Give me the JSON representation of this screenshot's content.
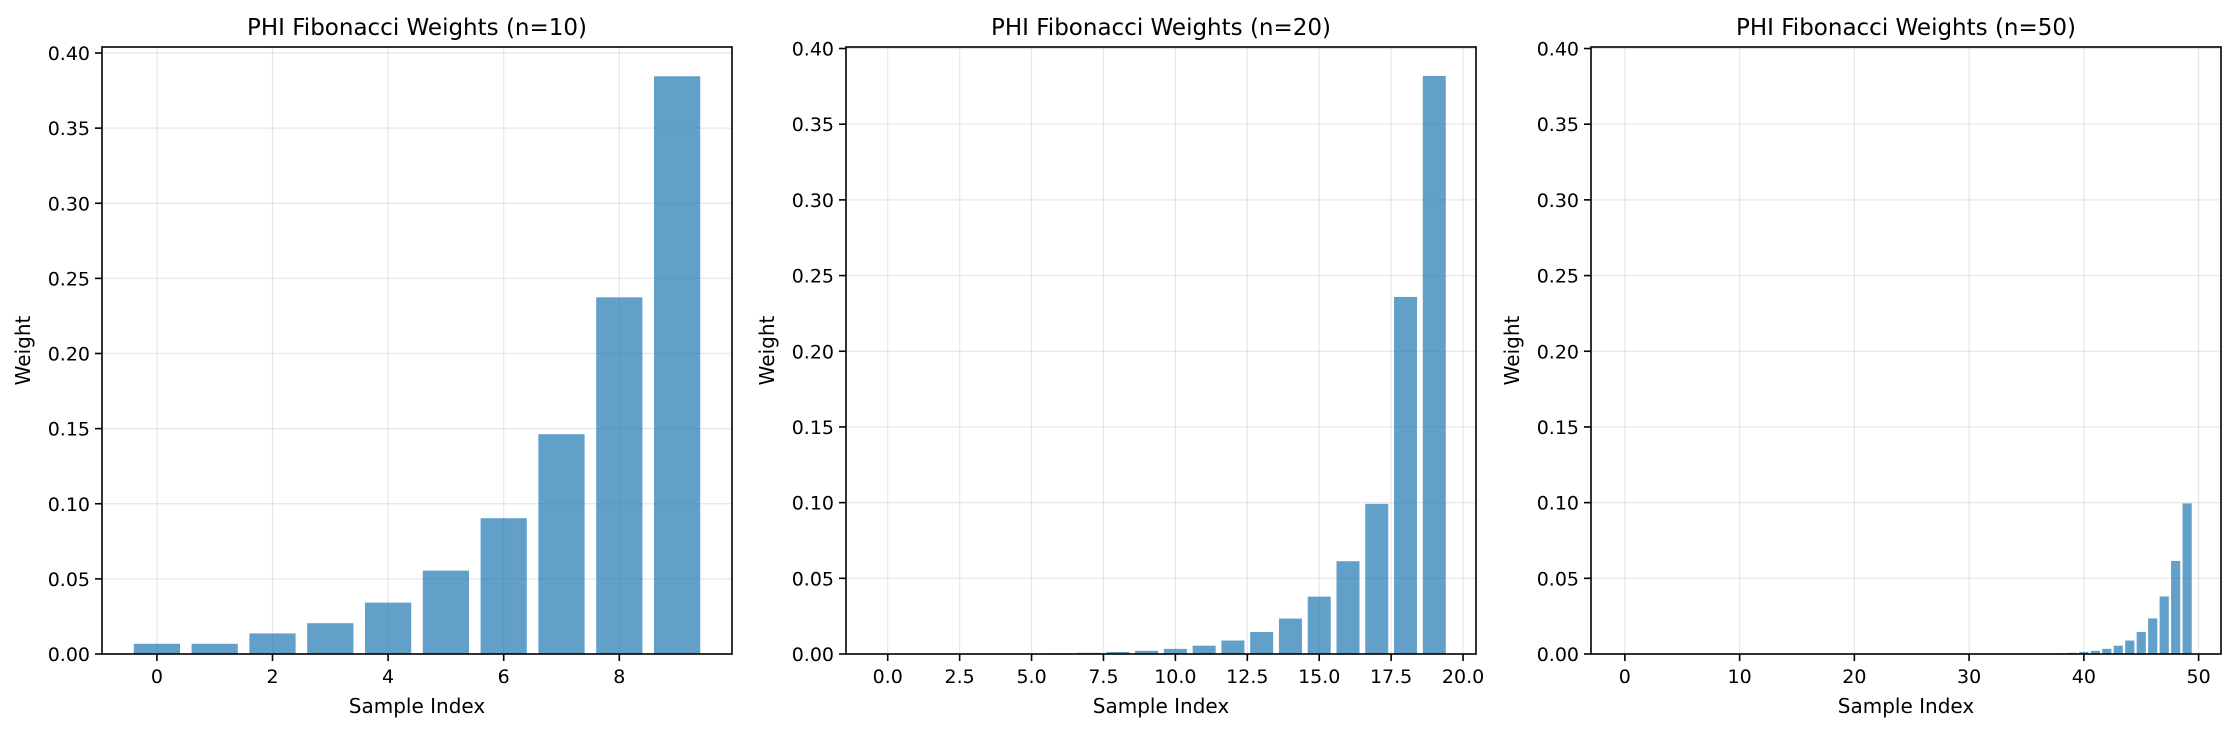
{
  "chart_data": [
    {
      "type": "bar",
      "title": "PHI Fibonacci Weights (n=10)",
      "xlabel": "Sample Index",
      "ylabel": "Weight",
      "x": [
        0,
        1,
        2,
        3,
        4,
        5,
        6,
        7,
        8,
        9
      ],
      "values": [
        0.0068,
        0.0068,
        0.0137,
        0.0205,
        0.0342,
        0.0555,
        0.0904,
        0.1463,
        0.2374,
        0.3845
      ],
      "xlim": [
        -0.95,
        9.95
      ],
      "ylim": [
        0,
        0.404
      ],
      "xticks": [
        0,
        2,
        4,
        6,
        8
      ],
      "xtick_labels": [
        "0",
        "2",
        "4",
        "6",
        "8"
      ],
      "yticks": [
        0,
        0.05,
        0.1,
        0.15,
        0.2,
        0.25,
        0.3,
        0.35,
        0.4
      ],
      "ytick_labels": [
        "0.00",
        "0.05",
        "0.10",
        "0.15",
        "0.20",
        "0.25",
        "0.30",
        "0.35",
        "0.40"
      ],
      "grid": true,
      "color": "#1f77b4"
    },
    {
      "type": "bar",
      "title": "PHI Fibonacci Weights (n=20)",
      "xlabel": "Sample Index",
      "ylabel": "Weight",
      "x": [
        0,
        1,
        2,
        3,
        4,
        5,
        6,
        7,
        8,
        9,
        10,
        11,
        12,
        13,
        14,
        15,
        16,
        17,
        18,
        19
      ],
      "values": [
        4e-05,
        4e-05,
        8e-05,
        0.00012,
        0.0002,
        0.0003,
        0.0005,
        0.0008,
        0.0013,
        0.0021,
        0.0034,
        0.0055,
        0.0089,
        0.0145,
        0.0234,
        0.0379,
        0.0613,
        0.0992,
        0.2359,
        0.3819
      ],
      "xlim": [
        -1.45,
        20.45
      ],
      "ylim": [
        0,
        0.401
      ],
      "xticks": [
        0,
        2.5,
        5,
        7.5,
        10,
        12.5,
        15,
        17.5,
        20
      ],
      "xtick_labels": [
        "0.0",
        "2.5",
        "5.0",
        "7.5",
        "10.0",
        "12.5",
        "15.0",
        "17.5",
        "20.0"
      ],
      "yticks": [
        0,
        0.05,
        0.1,
        0.15,
        0.2,
        0.25,
        0.3,
        0.35,
        0.4
      ],
      "ytick_labels": [
        "0.00",
        "0.05",
        "0.10",
        "0.15",
        "0.20",
        "0.25",
        "0.30",
        "0.35",
        "0.40"
      ],
      "grid": true,
      "color": "#1f77b4"
    },
    {
      "type": "bar",
      "title": "PHI Fibonacci Weights (n=50)",
      "xlabel": "Sample Index",
      "ylabel": "Weight",
      "x": [
        0,
        1,
        2,
        3,
        4,
        5,
        6,
        7,
        8,
        9,
        10,
        11,
        12,
        13,
        14,
        15,
        16,
        17,
        18,
        19,
        20,
        21,
        22,
        23,
        24,
        25,
        26,
        27,
        28,
        29,
        30,
        31,
        32,
        33,
        34,
        35,
        36,
        37,
        38,
        39,
        40,
        41,
        42,
        43,
        44,
        45,
        46,
        47,
        48,
        49
      ],
      "values": [
        0,
        0,
        0,
        0,
        0,
        0,
        0,
        0,
        0,
        0,
        0,
        0,
        0,
        0,
        0,
        0,
        0,
        0,
        0,
        0,
        0,
        0,
        0,
        0,
        0,
        0,
        0,
        0,
        0,
        0,
        0,
        0,
        0,
        4e-05,
        6e-05,
        0.0001,
        0.0002,
        0.0003,
        0.0005,
        0.0008,
        0.0013,
        0.0021,
        0.0034,
        0.0055,
        0.0089,
        0.0145,
        0.0235,
        0.038,
        0.0615,
        0.0995
      ],
      "xlim": [
        -2.95,
        51.95
      ],
      "ylim": [
        0,
        0.401
      ],
      "xticks": [
        0,
        10,
        20,
        30,
        40,
        50
      ],
      "xtick_labels": [
        "0",
        "10",
        "20",
        "30",
        "40",
        "50"
      ],
      "yticks": [
        0,
        0.05,
        0.1,
        0.15,
        0.2,
        0.25,
        0.3,
        0.35,
        0.4
      ],
      "ytick_labels": [
        "0.00",
        "0.05",
        "0.10",
        "0.15",
        "0.20",
        "0.25",
        "0.30",
        "0.35",
        "0.40"
      ],
      "grid": true,
      "color": "#1f77b4"
    }
  ]
}
